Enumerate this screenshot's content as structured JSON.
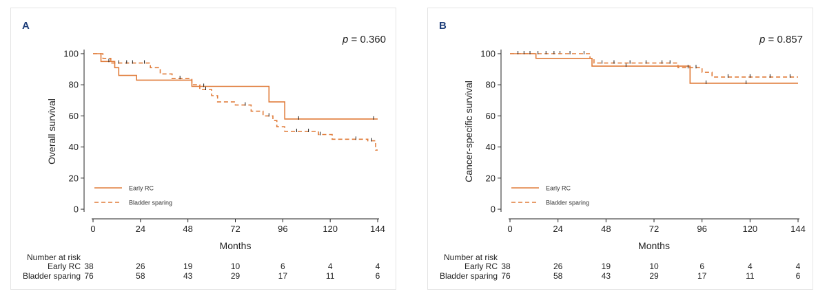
{
  "legend": {
    "early_rc": "Early RC",
    "bladder_sparing": "Bladder sparing"
  },
  "colors": {
    "series": "#e07b39"
  },
  "xaxis": {
    "label": "Months",
    "ticks": [
      0,
      24,
      48,
      72,
      96,
      120,
      144
    ]
  },
  "risk_table": {
    "title": "Number at risk",
    "rows": [
      {
        "label": "Early RC",
        "values": [
          38,
          26,
          19,
          10,
          6,
          4,
          4
        ]
      },
      {
        "label": "Bladder sparing",
        "values": [
          76,
          58,
          43,
          29,
          17,
          11,
          6
        ]
      }
    ]
  },
  "panels": {
    "a": {
      "letter": "A",
      "p_label": "p",
      "p_value": "= 0.360",
      "ylabel": "Overall survival"
    },
    "b": {
      "letter": "B",
      "p_label": "p",
      "p_value": "= 0.857",
      "ylabel": "Cancer-specific survival"
    }
  },
  "chart_data": [
    {
      "type": "line",
      "title": "",
      "xlabel": "Months",
      "ylabel": "Overall survival",
      "xlim": [
        0,
        144
      ],
      "ylim": [
        0,
        100
      ],
      "xticks": [
        0,
        24,
        48,
        72,
        96,
        120,
        144
      ],
      "yticks": [
        0,
        20,
        40,
        60,
        80,
        100
      ],
      "legend_position": "bottom-left",
      "series": [
        {
          "name": "Early RC",
          "style": "solid",
          "steps": [
            [
              0,
              100
            ],
            [
              4,
              100
            ],
            [
              4,
              95
            ],
            [
              11,
              95
            ],
            [
              11,
              91
            ],
            [
              13,
              91
            ],
            [
              13,
              86
            ],
            [
              22,
              86
            ],
            [
              22,
              83
            ],
            [
              50,
              83
            ],
            [
              50,
              79
            ],
            [
              89,
              79
            ],
            [
              89,
              69
            ],
            [
              97,
              69
            ],
            [
              97,
              58
            ],
            [
              144,
              58
            ]
          ],
          "censored": [
            [
              8,
              95
            ],
            [
              56,
              79
            ],
            [
              104,
              58
            ],
            [
              142,
              58
            ]
          ]
        },
        {
          "name": "Bladder sparing",
          "style": "dashed",
          "steps": [
            [
              0,
              100
            ],
            [
              5,
              100
            ],
            [
              5,
              97
            ],
            [
              9,
              97
            ],
            [
              9,
              94
            ],
            [
              29,
              94
            ],
            [
              29,
              91
            ],
            [
              34,
              91
            ],
            [
              34,
              87
            ],
            [
              40,
              87
            ],
            [
              40,
              84
            ],
            [
              50,
              84
            ],
            [
              50,
              80
            ],
            [
              54,
              80
            ],
            [
              54,
              77
            ],
            [
              60,
              77
            ],
            [
              60,
              73
            ],
            [
              63,
              73
            ],
            [
              63,
              69
            ],
            [
              72,
              69
            ],
            [
              72,
              67
            ],
            [
              80,
              67
            ],
            [
              80,
              63
            ],
            [
              86,
              63
            ],
            [
              86,
              60
            ],
            [
              91,
              60
            ],
            [
              91,
              57
            ],
            [
              93,
              57
            ],
            [
              93,
              53
            ],
            [
              97,
              53
            ],
            [
              97,
              50
            ],
            [
              114,
              50
            ],
            [
              114,
              48
            ],
            [
              121,
              48
            ],
            [
              121,
              45
            ],
            [
              139,
              45
            ],
            [
              139,
              44
            ],
            [
              143,
              44
            ],
            [
              143,
              38
            ],
            [
              144,
              38
            ]
          ],
          "censored": [
            [
              13,
              94
            ],
            [
              17,
              94
            ],
            [
              20,
              94
            ],
            [
              26,
              94
            ],
            [
              44,
              84
            ],
            [
              57,
              77
            ],
            [
              77,
              67
            ],
            [
              89,
              60
            ],
            [
              103,
              50
            ],
            [
              109,
              50
            ],
            [
              115,
              48
            ],
            [
              133,
              45
            ],
            [
              141,
              44
            ]
          ]
        }
      ]
    },
    {
      "type": "line",
      "title": "",
      "xlabel": "Months",
      "ylabel": "Cancer-specific survival",
      "xlim": [
        0,
        144
      ],
      "ylim": [
        0,
        100
      ],
      "xticks": [
        0,
        24,
        48,
        72,
        96,
        120,
        144
      ],
      "yticks": [
        0,
        20,
        40,
        60,
        80,
        100
      ],
      "legend_position": "bottom-left",
      "series": [
        {
          "name": "Early RC",
          "style": "solid",
          "steps": [
            [
              0,
              100
            ],
            [
              13,
              100
            ],
            [
              13,
              97
            ],
            [
              41,
              97
            ],
            [
              41,
              92
            ],
            [
              90,
              92
            ],
            [
              90,
              81
            ],
            [
              144,
              81
            ]
          ],
          "censored": [
            [
              25,
              100
            ],
            [
              58,
              92
            ],
            [
              98,
              81
            ],
            [
              118,
              81
            ]
          ]
        },
        {
          "name": "Bladder sparing",
          "style": "dashed",
          "steps": [
            [
              0,
              100
            ],
            [
              40,
              100
            ],
            [
              40,
              97
            ],
            [
              42,
              97
            ],
            [
              42,
              94
            ],
            [
              84,
              94
            ],
            [
              84,
              91
            ],
            [
              96,
              91
            ],
            [
              96,
              88
            ],
            [
              101,
              88
            ],
            [
              101,
              85
            ],
            [
              144,
              85
            ]
          ],
          "censored": [
            [
              4,
              100
            ],
            [
              7,
              100
            ],
            [
              10,
              100
            ],
            [
              14,
              100
            ],
            [
              18,
              100
            ],
            [
              22,
              100
            ],
            [
              30,
              100
            ],
            [
              37,
              100
            ],
            [
              46,
              94
            ],
            [
              52,
              94
            ],
            [
              60,
              94
            ],
            [
              68,
              94
            ],
            [
              76,
              94
            ],
            [
              80,
              94
            ],
            [
              89,
              91
            ],
            [
              93,
              91
            ],
            [
              109,
              85
            ],
            [
              120,
              85
            ],
            [
              130,
              85
            ],
            [
              140,
              85
            ]
          ]
        }
      ]
    }
  ]
}
